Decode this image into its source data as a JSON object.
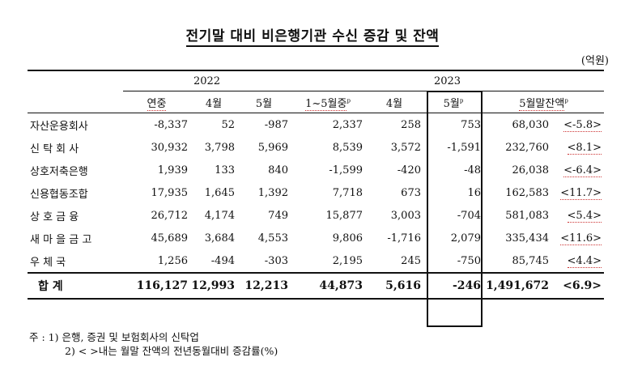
{
  "title": "전기말 대비 비은행기관 수신 증감 및 잔액",
  "unit": "(억원)",
  "years": [
    "2022",
    "2023"
  ],
  "columns": [
    "연중",
    "4월",
    "5월",
    "1~5월중",
    "4월",
    "5월",
    "5월말잔액"
  ],
  "rows": [
    {
      "label": "자산운용회사",
      "values": [
        "-8,337",
        "52",
        "-987",
        "2,337",
        "258",
        "753",
        "68,030",
        "<-5.8>"
      ]
    },
    {
      "label": "신 탁 회 사",
      "values": [
        "30,932",
        "3,798",
        "5,969",
        "8,539",
        "3,572",
        "-1,591",
        "232,760",
        "<8.1>"
      ]
    },
    {
      "label": "상호저축은행",
      "values": [
        "1,939",
        "133",
        "840",
        "-1,599",
        "-420",
        "-48",
        "26,038",
        "<-6.4>"
      ]
    },
    {
      "label": "신용협동조합",
      "values": [
        "17,935",
        "1,645",
        "1,392",
        "7,718",
        "673",
        "16",
        "162,583",
        "<11.7>"
      ]
    },
    {
      "label": "상 호 금 융",
      "values": [
        "26,712",
        "4,174",
        "749",
        "15,877",
        "3,003",
        "-704",
        "581,083",
        "<5.4>"
      ]
    },
    {
      "label": "새 마 을 금 고",
      "values": [
        "45,689",
        "3,684",
        "4,553",
        "9,806",
        "-1,716",
        "2,079",
        "335,434",
        "<11.6>"
      ]
    },
    {
      "label": "우 체 국",
      "values": [
        "1,256",
        "-494",
        "-303",
        "2,195",
        "245",
        "-750",
        "85,745",
        "<4.4>"
      ]
    }
  ],
  "total": {
    "label": "합 계",
    "values": [
      "116,127",
      "12,993",
      "12,213",
      "44,873",
      "5,616",
      "-246",
      "1,491,672",
      "<6.9>"
    ]
  },
  "notes": [
    "주 : 1) 은행, 증권 및 보험회사의 신탁업",
    "2) < >내는 월말 잔액의 전년동월대비 증감률(%)"
  ]
}
